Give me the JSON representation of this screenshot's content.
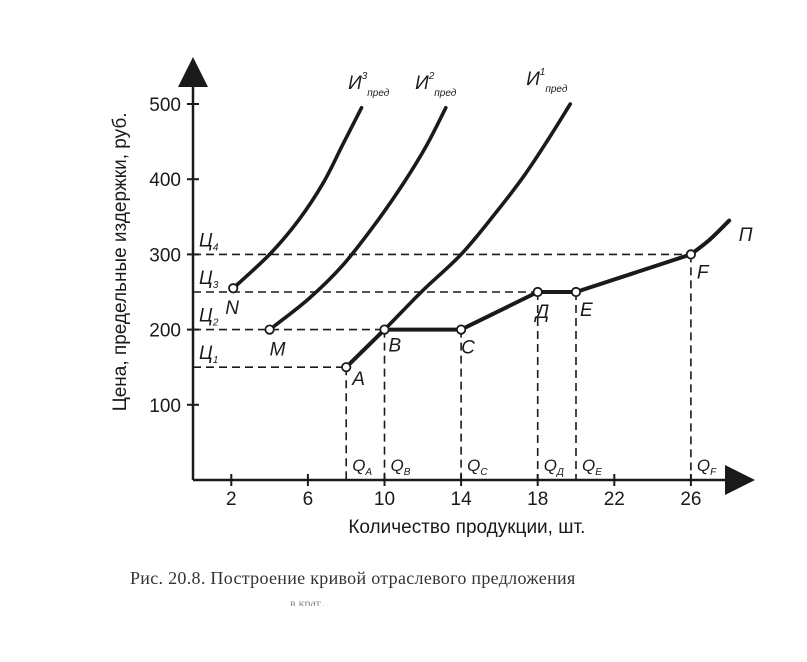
{
  "chart_data": {
    "type": "line",
    "xlabel": "Количество продукции, шт.",
    "ylabel": "Цена, предельные издержки, руб.",
    "xlim": [
      0,
      29
    ],
    "ylim": [
      0,
      550
    ],
    "x_ticks": [
      "2",
      "6",
      "10",
      "14",
      "18",
      "22",
      "26"
    ],
    "x_tick_values": [
      2,
      6,
      10,
      14,
      18,
      22,
      26
    ],
    "y_ticks": [
      "100",
      "200",
      "300",
      "400",
      "500"
    ],
    "y_tick_values": [
      100,
      200,
      300,
      400,
      500
    ],
    "price_levels": [
      {
        "label": "Ц",
        "sub": "1",
        "value": 150
      },
      {
        "label": "Ц",
        "sub": "2",
        "value": 200
      },
      {
        "label": "Ц",
        "sub": "3",
        "value": 250
      },
      {
        "label": "Ц",
        "sub": "4",
        "value": 300
      }
    ],
    "series": [
      {
        "name_main": "И",
        "name_sup": "3",
        "name_sub": "пред",
        "points": [
          [
            2.1,
            255
          ],
          [
            4,
            300
          ],
          [
            5.5,
            345
          ],
          [
            6.8,
            395
          ],
          [
            7.8,
            445
          ],
          [
            8.8,
            495
          ]
        ]
      },
      {
        "name_main": "И",
        "name_sup": "2",
        "name_sub": "пред",
        "points": [
          [
            4,
            200
          ],
          [
            6,
            240
          ],
          [
            7.8,
            285
          ],
          [
            9.5,
            340
          ],
          [
            11,
            395
          ],
          [
            12.2,
            445
          ],
          [
            13.2,
            495
          ]
        ]
      },
      {
        "name_main": "И",
        "name_sup": "1",
        "name_sub": "пред",
        "points": [
          [
            8,
            150
          ],
          [
            10,
            200
          ],
          [
            12,
            252
          ],
          [
            14,
            300
          ],
          [
            15.8,
            355
          ],
          [
            17.3,
            405
          ],
          [
            18.6,
            455
          ],
          [
            19.7,
            500
          ]
        ]
      },
      {
        "name_main": "П",
        "name_sup": "",
        "name_sub": "",
        "points": [
          [
            8,
            150
          ],
          [
            10,
            200
          ],
          [
            14,
            200
          ],
          [
            18,
            250
          ],
          [
            20,
            250
          ],
          [
            26,
            300
          ],
          [
            27,
            320
          ],
          [
            28,
            345
          ]
        ]
      }
    ],
    "points": [
      {
        "label": "N",
        "x": 2.1,
        "y": 255
      },
      {
        "label": "M",
        "x": 4,
        "y": 200
      },
      {
        "label": "A",
        "x": 8,
        "y": 150
      },
      {
        "label": "B",
        "x": 10,
        "y": 200
      },
      {
        "label": "C",
        "x": 14,
        "y": 200
      },
      {
        "label": "Д",
        "x": 18,
        "y": 250
      },
      {
        "label": "E",
        "x": 20,
        "y": 250
      },
      {
        "label": "F",
        "x": 26,
        "y": 300
      }
    ],
    "q_labels": [
      {
        "label": "Q",
        "sub": "A",
        "x": 8
      },
      {
        "label": "Q",
        "sub": "B",
        "x": 10
      },
      {
        "label": "Q",
        "sub": "C",
        "x": 14
      },
      {
        "label": "Q",
        "sub": "Д",
        "x": 18
      },
      {
        "label": "Q",
        "sub": "E",
        "x": 20
      },
      {
        "label": "Q",
        "sub": "F",
        "x": 26
      }
    ],
    "grid": false,
    "legend": "none"
  },
  "caption": "Рис. 20.8. Построение кривой отраслевого предложения",
  "caption_cut": "в крат..."
}
